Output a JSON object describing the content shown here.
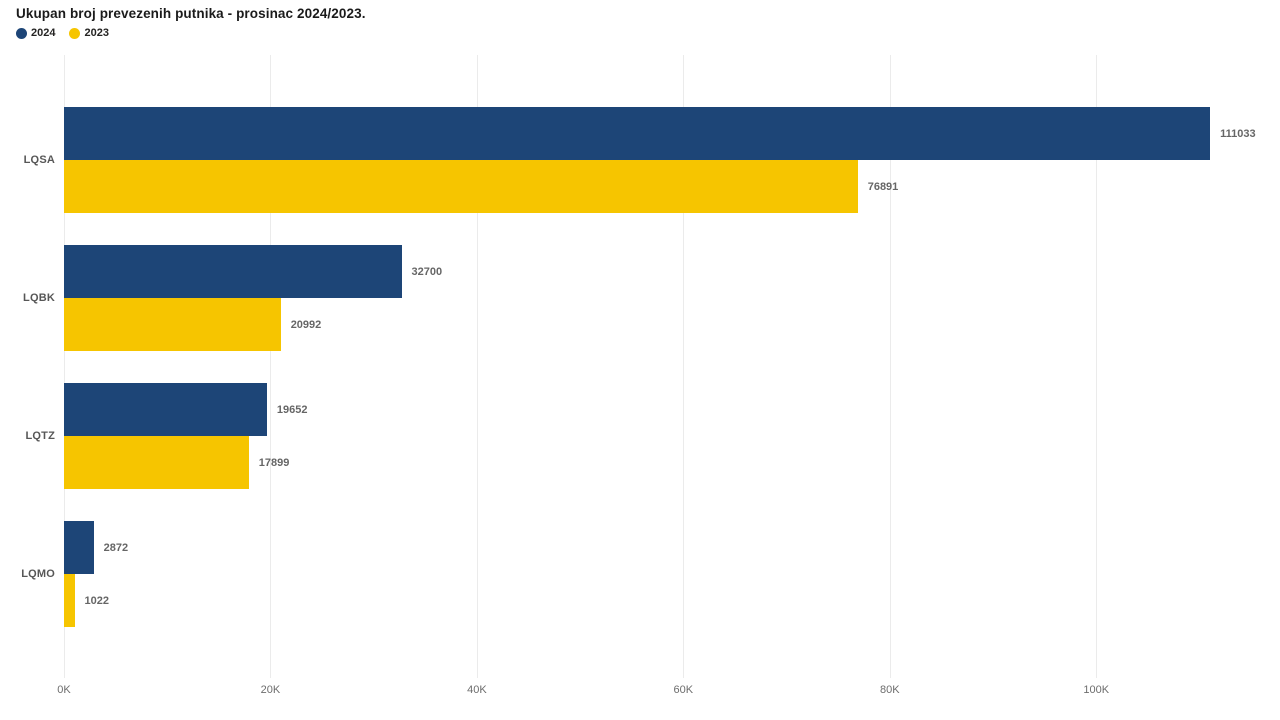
{
  "title": "Ukupan broj prevezenih putnika - prosinac 2024/2023.",
  "legend": {
    "items": [
      {
        "label": "2024",
        "color": "#1d4577"
      },
      {
        "label": "2023",
        "color": "#f6c500"
      }
    ]
  },
  "colors": {
    "series_2024": "#1d4577",
    "series_2023": "#f6c500",
    "gridline": "#ebebeb",
    "title_text": "#1b1b1b",
    "label_text": "#666666",
    "category_text": "#575757",
    "tick_text": "#6d6d6d"
  },
  "chart_data": {
    "type": "bar",
    "orientation": "horizontal",
    "title": "Ukupan broj prevezenih putnika - prosinac 2024/2023.",
    "categories": [
      "LQSA",
      "LQBK",
      "LQTZ",
      "LQMO"
    ],
    "series": [
      {
        "name": "2024",
        "color": "#1d4577",
        "values": [
          111033,
          32700,
          19652,
          2872
        ]
      },
      {
        "name": "2023",
        "color": "#f6c500",
        "values": [
          76891,
          20992,
          17899,
          1022
        ]
      }
    ],
    "value_labels": [
      [
        "111033",
        "32700",
        "19652",
        "2872"
      ],
      [
        "76891",
        "20992",
        "17899",
        "1022"
      ]
    ],
    "xlabel": "",
    "ylabel": "",
    "xlim": [
      0,
      117800
    ],
    "xticks": [
      {
        "value": 0,
        "label": "0K"
      },
      {
        "value": 20000,
        "label": "20K"
      },
      {
        "value": 40000,
        "label": "40K"
      },
      {
        "value": 60000,
        "label": "60K"
      },
      {
        "value": 80000,
        "label": "80K"
      },
      {
        "value": 100000,
        "label": "100K"
      }
    ],
    "grid": true,
    "legend_position": "top-left"
  }
}
